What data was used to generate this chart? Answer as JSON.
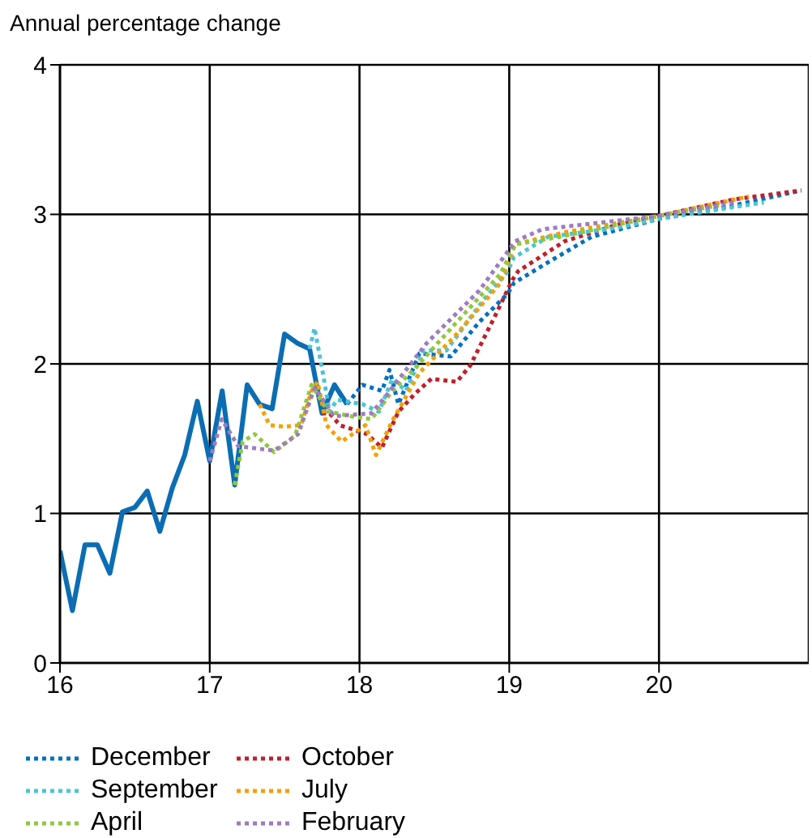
{
  "chart_data": {
    "type": "line",
    "ylabel": "Annual percentage change",
    "xlim": [
      16,
      21
    ],
    "xticks": [
      16,
      17,
      18,
      19,
      20
    ],
    "ylim": [
      0,
      4
    ],
    "yticks": [
      0,
      1,
      2,
      3,
      4
    ],
    "grid": true,
    "legend": "bottom",
    "marker": "none",
    "series": [
      {
        "color": "#0b6db3",
        "line_style": "solid",
        "x": [
          16,
          16.083,
          16.167,
          16.25,
          16.333,
          16.417,
          16.5,
          16.583,
          16.667,
          16.75,
          16.833,
          16.917,
          17,
          17.083,
          17.167,
          17.25,
          17.333,
          17.417,
          17.5,
          17.583,
          17.667,
          17.75,
          17.833,
          17.917
        ],
        "values": [
          0.75,
          0.35,
          0.79,
          0.79,
          0.6,
          1.01,
          1.04,
          1.15,
          0.88,
          1.17,
          1.39,
          1.75,
          1.35,
          1.82,
          1.19,
          1.86,
          1.73,
          1.7,
          2.2,
          2.14,
          2.1,
          1.67,
          1.86,
          1.73
        ]
      },
      {
        "name": "December",
        "color": "#0070c0",
        "line_style": "dotted",
        "x": [
          17.917,
          18.02,
          18.15,
          18.2,
          18.26,
          18.4,
          18.61,
          18.8,
          18.99,
          19.03,
          19.26,
          19.55,
          20,
          20.5,
          20.95
        ],
        "values": [
          1.73,
          1.86,
          1.82,
          1.96,
          1.73,
          2.07,
          2.05,
          2.28,
          2.47,
          2.54,
          2.68,
          2.85,
          2.97,
          3.06,
          3.16
        ]
      },
      {
        "name": "October",
        "color": "#c0202a",
        "line_style": "dotted",
        "x": [
          17.75,
          17.8,
          17.87,
          18.05,
          18.15,
          18.26,
          18.37,
          18.48,
          18.65,
          18.74,
          18.9,
          19.02,
          19.06,
          19.37,
          19.72,
          20,
          20.5,
          20.95
        ],
        "values": [
          1.67,
          1.67,
          1.59,
          1.53,
          1.44,
          1.68,
          1.8,
          1.9,
          1.88,
          1.99,
          2.31,
          2.56,
          2.62,
          2.82,
          2.93,
          2.99,
          3.1,
          3.16
        ]
      },
      {
        "name": "September",
        "color": "#4bc4d8",
        "line_style": "dotted",
        "x": [
          17.667,
          17.7,
          17.75,
          17.8,
          17.85,
          18.02,
          18.13,
          18.22,
          18.31,
          18.43,
          18.58,
          18.83,
          18.99,
          19.03,
          19.26,
          19.72,
          20,
          20.7
        ],
        "values": [
          2.1,
          2.24,
          1.97,
          1.68,
          1.76,
          1.73,
          1.68,
          1.9,
          1.82,
          2.09,
          2.09,
          2.43,
          2.62,
          2.71,
          2.85,
          2.91,
          2.97,
          3.08
        ]
      },
      {
        "name": "July",
        "color": "#f5a000",
        "line_style": "dotted",
        "x": [
          17.333,
          17.4,
          17.5,
          17.61,
          17.68,
          17.72,
          17.78,
          17.88,
          18.04,
          18.11,
          18.22,
          18.4,
          18.65,
          18.94,
          19.04,
          19.37,
          20,
          20.6
        ],
        "values": [
          1.73,
          1.59,
          1.58,
          1.59,
          1.82,
          1.88,
          1.59,
          1.48,
          1.59,
          1.39,
          1.62,
          1.94,
          2.2,
          2.54,
          2.8,
          2.88,
          2.99,
          3.12
        ]
      },
      {
        "name": "April",
        "color": "#92c83e",
        "line_style": "dotted",
        "x": [
          17.167,
          17.22,
          17.3,
          17.43,
          17.57,
          17.68,
          17.79,
          17.85,
          17.94,
          18.08,
          18.22,
          18.37,
          18.65,
          18.94,
          19.04,
          19.34,
          20,
          20.4
        ],
        "values": [
          1.19,
          1.48,
          1.53,
          1.41,
          1.52,
          1.86,
          1.68,
          1.67,
          1.65,
          1.63,
          1.82,
          1.97,
          2.28,
          2.6,
          2.8,
          2.85,
          2.99,
          3.06
        ]
      },
      {
        "name": "February",
        "color": "#9e7cc0",
        "line_style": "dotted",
        "x": [
          17,
          17.08,
          17.19,
          17.43,
          17.59,
          17.7,
          17.83,
          18.08,
          18.18,
          18.45,
          18.8,
          19.04,
          19.22,
          20,
          20.5
        ],
        "values": [
          1.35,
          1.63,
          1.45,
          1.42,
          1.53,
          1.84,
          1.65,
          1.67,
          1.79,
          2.14,
          2.49,
          2.82,
          2.9,
          2.99,
          3.08
        ]
      }
    ]
  }
}
